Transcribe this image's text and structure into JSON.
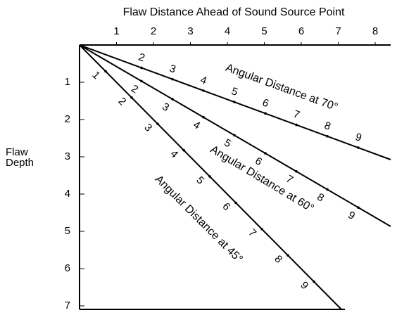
{
  "title": "Flaw Distance Ahead of Sound Source Point",
  "top_axis": {
    "ticks": [
      1,
      2,
      3,
      4,
      5,
      6,
      7,
      8
    ]
  },
  "left_axis": {
    "label": "Flaw Depth",
    "ticks": [
      1,
      2,
      3,
      4,
      5,
      6,
      7
    ]
  },
  "lines": [
    {
      "label": "Angular Distance at 70°",
      "ticks": [
        2,
        3,
        4,
        5,
        6,
        7,
        8,
        9
      ]
    },
    {
      "label": "Angular Distance at 60°",
      "ticks": [
        2,
        3,
        4,
        5,
        6,
        7,
        8,
        9
      ]
    },
    {
      "label": "Angular Distance at 45°",
      "ticks": [
        1,
        2,
        3,
        4,
        5,
        6,
        7,
        8,
        9
      ]
    }
  ]
}
